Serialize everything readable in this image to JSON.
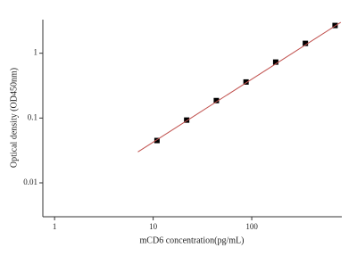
{
  "chart_data": {
    "type": "scatter",
    "x_label": "mCD6 concentration(pg/mL)",
    "y_label": "Optical density (OD450nm)",
    "x_log": true,
    "y_log": true,
    "xlim": [
      0.76,
      820
    ],
    "ylim": [
      0.003,
      3.3
    ],
    "xticks": [
      1,
      10,
      100
    ],
    "yticks": [
      0.01,
      0.1,
      1
    ],
    "series": [
      {
        "color": "#000000",
        "x": [
          10.9375,
          21.875,
          43.75,
          87.5,
          175,
          350,
          700
        ],
        "values": [
          0.045,
          0.093,
          0.186,
          0.36,
          0.73,
          1.42,
          2.68
        ]
      },
      {
        "color": "#c0504d",
        "x": [
          7,
          800
        ],
        "values": [
          0.03,
          3.0
        ],
        "line": true
      }
    ]
  }
}
